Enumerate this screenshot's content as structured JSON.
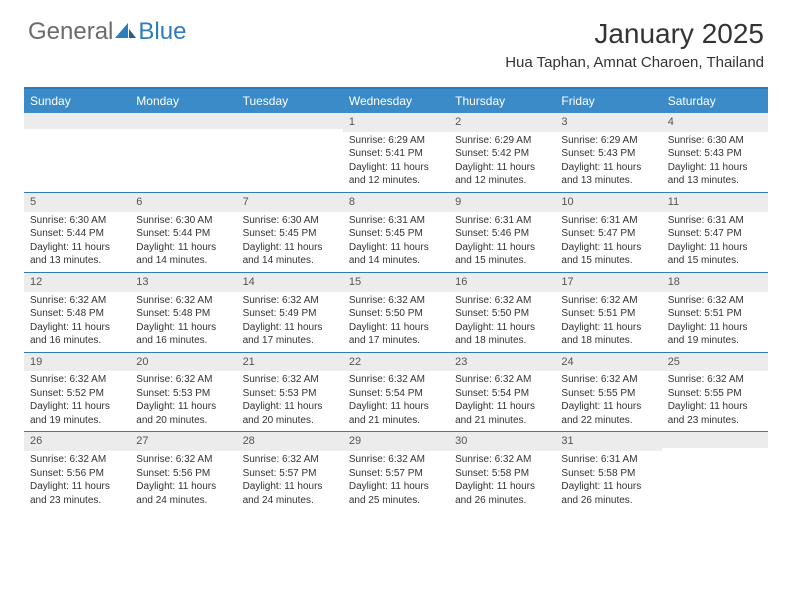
{
  "logo": {
    "part1": "General",
    "part2": "Blue"
  },
  "title": "January 2025",
  "location": "Hua Taphan, Amnat Charoen, Thailand",
  "colors": {
    "header_bar": "#3b8bc9",
    "rule": "#2f7bbf",
    "daynum_bg": "#ececec",
    "text": "#333333",
    "logo_gray": "#6b6b6b",
    "logo_blue": "#2f7bbf",
    "background": "#ffffff"
  },
  "weekdays": [
    "Sunday",
    "Monday",
    "Tuesday",
    "Wednesday",
    "Thursday",
    "Friday",
    "Saturday"
  ],
  "weeks": [
    [
      {
        "n": "",
        "sunrise": "",
        "sunset": "",
        "daylight": ""
      },
      {
        "n": "",
        "sunrise": "",
        "sunset": "",
        "daylight": ""
      },
      {
        "n": "",
        "sunrise": "",
        "sunset": "",
        "daylight": ""
      },
      {
        "n": "1",
        "sunrise": "Sunrise: 6:29 AM",
        "sunset": "Sunset: 5:41 PM",
        "daylight": "Daylight: 11 hours and 12 minutes."
      },
      {
        "n": "2",
        "sunrise": "Sunrise: 6:29 AM",
        "sunset": "Sunset: 5:42 PM",
        "daylight": "Daylight: 11 hours and 12 minutes."
      },
      {
        "n": "3",
        "sunrise": "Sunrise: 6:29 AM",
        "sunset": "Sunset: 5:43 PM",
        "daylight": "Daylight: 11 hours and 13 minutes."
      },
      {
        "n": "4",
        "sunrise": "Sunrise: 6:30 AM",
        "sunset": "Sunset: 5:43 PM",
        "daylight": "Daylight: 11 hours and 13 minutes."
      }
    ],
    [
      {
        "n": "5",
        "sunrise": "Sunrise: 6:30 AM",
        "sunset": "Sunset: 5:44 PM",
        "daylight": "Daylight: 11 hours and 13 minutes."
      },
      {
        "n": "6",
        "sunrise": "Sunrise: 6:30 AM",
        "sunset": "Sunset: 5:44 PM",
        "daylight": "Daylight: 11 hours and 14 minutes."
      },
      {
        "n": "7",
        "sunrise": "Sunrise: 6:30 AM",
        "sunset": "Sunset: 5:45 PM",
        "daylight": "Daylight: 11 hours and 14 minutes."
      },
      {
        "n": "8",
        "sunrise": "Sunrise: 6:31 AM",
        "sunset": "Sunset: 5:45 PM",
        "daylight": "Daylight: 11 hours and 14 minutes."
      },
      {
        "n": "9",
        "sunrise": "Sunrise: 6:31 AM",
        "sunset": "Sunset: 5:46 PM",
        "daylight": "Daylight: 11 hours and 15 minutes."
      },
      {
        "n": "10",
        "sunrise": "Sunrise: 6:31 AM",
        "sunset": "Sunset: 5:47 PM",
        "daylight": "Daylight: 11 hours and 15 minutes."
      },
      {
        "n": "11",
        "sunrise": "Sunrise: 6:31 AM",
        "sunset": "Sunset: 5:47 PM",
        "daylight": "Daylight: 11 hours and 15 minutes."
      }
    ],
    [
      {
        "n": "12",
        "sunrise": "Sunrise: 6:32 AM",
        "sunset": "Sunset: 5:48 PM",
        "daylight": "Daylight: 11 hours and 16 minutes."
      },
      {
        "n": "13",
        "sunrise": "Sunrise: 6:32 AM",
        "sunset": "Sunset: 5:48 PM",
        "daylight": "Daylight: 11 hours and 16 minutes."
      },
      {
        "n": "14",
        "sunrise": "Sunrise: 6:32 AM",
        "sunset": "Sunset: 5:49 PM",
        "daylight": "Daylight: 11 hours and 17 minutes."
      },
      {
        "n": "15",
        "sunrise": "Sunrise: 6:32 AM",
        "sunset": "Sunset: 5:50 PM",
        "daylight": "Daylight: 11 hours and 17 minutes."
      },
      {
        "n": "16",
        "sunrise": "Sunrise: 6:32 AM",
        "sunset": "Sunset: 5:50 PM",
        "daylight": "Daylight: 11 hours and 18 minutes."
      },
      {
        "n": "17",
        "sunrise": "Sunrise: 6:32 AM",
        "sunset": "Sunset: 5:51 PM",
        "daylight": "Daylight: 11 hours and 18 minutes."
      },
      {
        "n": "18",
        "sunrise": "Sunrise: 6:32 AM",
        "sunset": "Sunset: 5:51 PM",
        "daylight": "Daylight: 11 hours and 19 minutes."
      }
    ],
    [
      {
        "n": "19",
        "sunrise": "Sunrise: 6:32 AM",
        "sunset": "Sunset: 5:52 PM",
        "daylight": "Daylight: 11 hours and 19 minutes."
      },
      {
        "n": "20",
        "sunrise": "Sunrise: 6:32 AM",
        "sunset": "Sunset: 5:53 PM",
        "daylight": "Daylight: 11 hours and 20 minutes."
      },
      {
        "n": "21",
        "sunrise": "Sunrise: 6:32 AM",
        "sunset": "Sunset: 5:53 PM",
        "daylight": "Daylight: 11 hours and 20 minutes."
      },
      {
        "n": "22",
        "sunrise": "Sunrise: 6:32 AM",
        "sunset": "Sunset: 5:54 PM",
        "daylight": "Daylight: 11 hours and 21 minutes."
      },
      {
        "n": "23",
        "sunrise": "Sunrise: 6:32 AM",
        "sunset": "Sunset: 5:54 PM",
        "daylight": "Daylight: 11 hours and 21 minutes."
      },
      {
        "n": "24",
        "sunrise": "Sunrise: 6:32 AM",
        "sunset": "Sunset: 5:55 PM",
        "daylight": "Daylight: 11 hours and 22 minutes."
      },
      {
        "n": "25",
        "sunrise": "Sunrise: 6:32 AM",
        "sunset": "Sunset: 5:55 PM",
        "daylight": "Daylight: 11 hours and 23 minutes."
      }
    ],
    [
      {
        "n": "26",
        "sunrise": "Sunrise: 6:32 AM",
        "sunset": "Sunset: 5:56 PM",
        "daylight": "Daylight: 11 hours and 23 minutes."
      },
      {
        "n": "27",
        "sunrise": "Sunrise: 6:32 AM",
        "sunset": "Sunset: 5:56 PM",
        "daylight": "Daylight: 11 hours and 24 minutes."
      },
      {
        "n": "28",
        "sunrise": "Sunrise: 6:32 AM",
        "sunset": "Sunset: 5:57 PM",
        "daylight": "Daylight: 11 hours and 24 minutes."
      },
      {
        "n": "29",
        "sunrise": "Sunrise: 6:32 AM",
        "sunset": "Sunset: 5:57 PM",
        "daylight": "Daylight: 11 hours and 25 minutes."
      },
      {
        "n": "30",
        "sunrise": "Sunrise: 6:32 AM",
        "sunset": "Sunset: 5:58 PM",
        "daylight": "Daylight: 11 hours and 26 minutes."
      },
      {
        "n": "31",
        "sunrise": "Sunrise: 6:31 AM",
        "sunset": "Sunset: 5:58 PM",
        "daylight": "Daylight: 11 hours and 26 minutes."
      },
      {
        "n": "",
        "sunrise": "",
        "sunset": "",
        "daylight": ""
      }
    ]
  ]
}
